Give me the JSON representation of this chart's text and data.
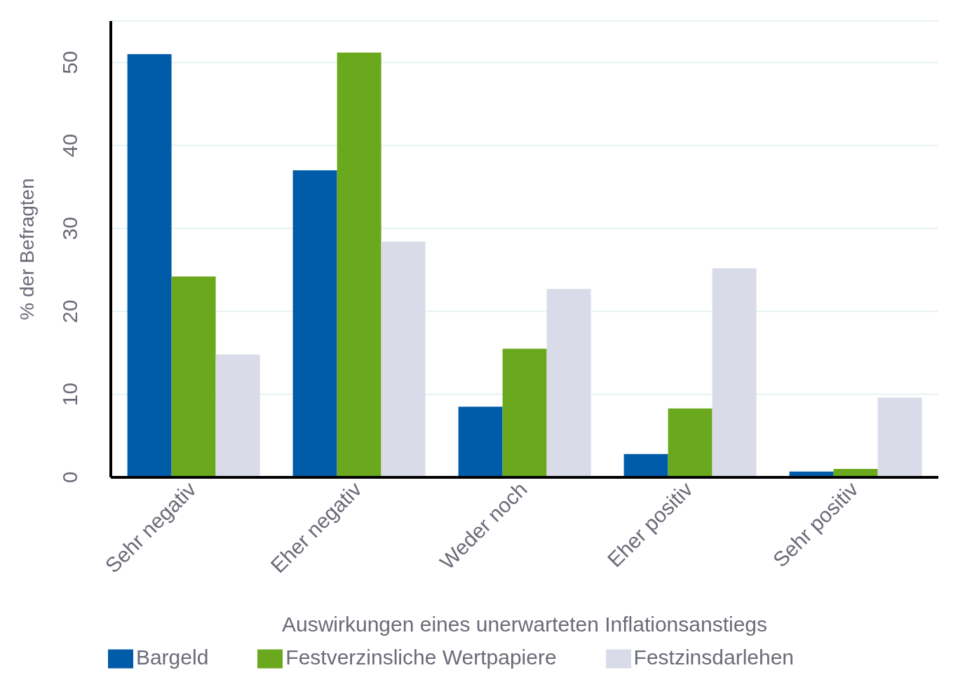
{
  "chart_data": {
    "type": "bar",
    "xlabel": "Auswirkungen eines unerwarteten Inflationsanstiegs",
    "ylabel": "% der Befragten",
    "categories": [
      "Sehr negativ",
      "Eher negativ",
      "Weder noch",
      "Eher positiv",
      "Sehr positiv"
    ],
    "series": [
      {
        "name": "Bargeld",
        "color": "#005ca9",
        "values": [
          51,
          37,
          8.5,
          2.8,
          0.7
        ]
      },
      {
        "name": "Festverzinsliche Wertpapiere",
        "color": "#6aa81e",
        "values": [
          24.2,
          51.2,
          15.5,
          8.3,
          1
        ]
      },
      {
        "name": "Festzinsdarlehen",
        "color": "#d9dbe8",
        "values": [
          14.8,
          28.4,
          22.7,
          25.2,
          9.6
        ]
      }
    ],
    "ylim": [
      0,
      55
    ],
    "yticks": [
      0,
      10,
      20,
      30,
      40,
      50
    ],
    "grid": "y",
    "legend": "bottom"
  }
}
